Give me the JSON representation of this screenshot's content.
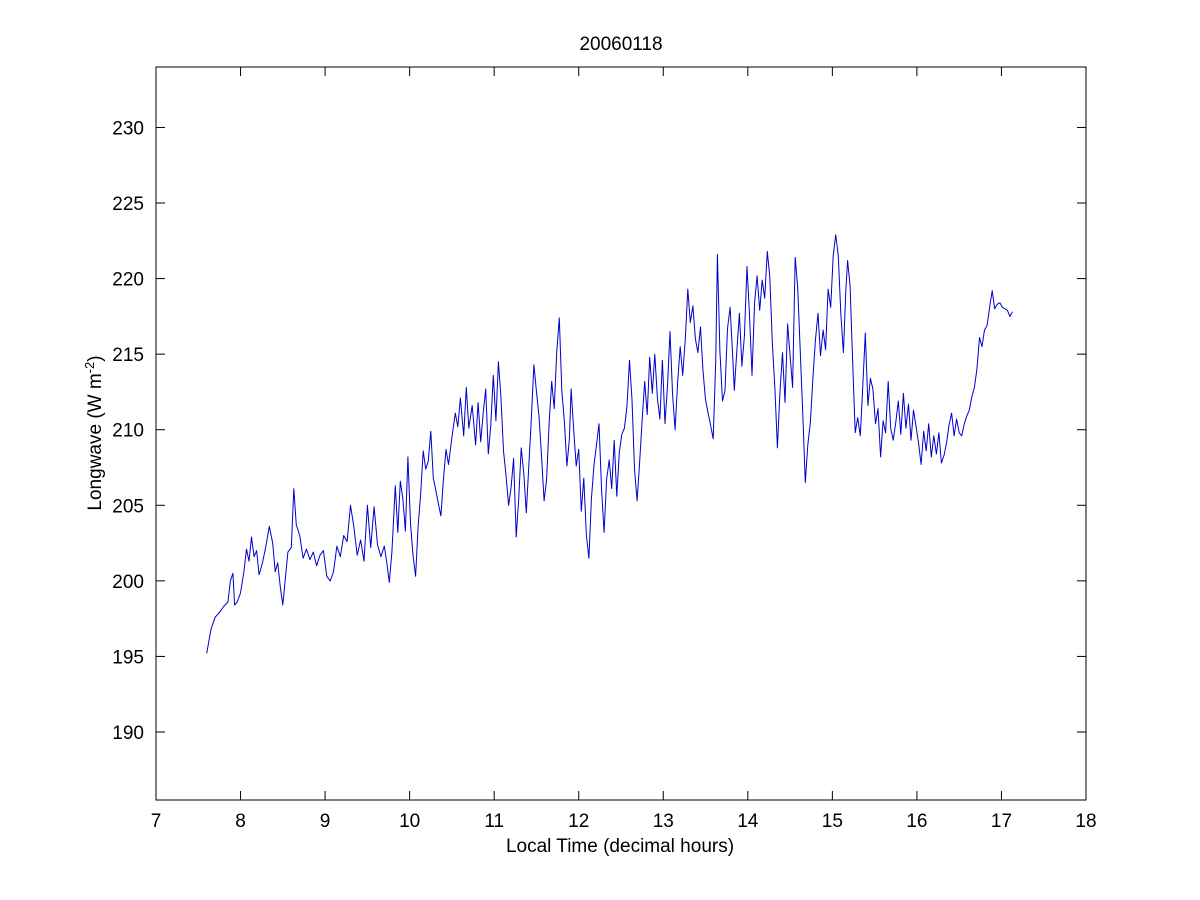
{
  "chart_data": {
    "type": "line",
    "title": "20060118",
    "xlabel": "Local Time (decimal hours)",
    "ylabel_main": "Longwave (W m",
    "ylabel_sup": "-2",
    "ylabel_close": ")",
    "xlim": [
      7,
      18
    ],
    "ylim": [
      185.5,
      234
    ],
    "xticks": [
      "7",
      "8",
      "9",
      "10",
      "11",
      "12",
      "13",
      "14",
      "15",
      "16",
      "17",
      "18"
    ],
    "yticks": [
      "190",
      "195",
      "200",
      "205",
      "210",
      "215",
      "220",
      "225",
      "230"
    ],
    "grid": false,
    "series": [
      {
        "color": "#0000cc",
        "points": [
          [
            7.6,
            195.2
          ],
          [
            7.65,
            196.8
          ],
          [
            7.7,
            197.6
          ],
          [
            7.75,
            197.9
          ],
          [
            7.8,
            198.3
          ],
          [
            7.85,
            198.6
          ],
          [
            7.88,
            200.0
          ],
          [
            7.91,
            200.5
          ],
          [
            7.93,
            198.4
          ],
          [
            7.96,
            198.6
          ],
          [
            8.0,
            199.2
          ],
          [
            8.04,
            200.6
          ],
          [
            8.07,
            202.1
          ],
          [
            8.1,
            201.3
          ],
          [
            8.13,
            202.9
          ],
          [
            8.16,
            201.6
          ],
          [
            8.19,
            202.0
          ],
          [
            8.22,
            200.4
          ],
          [
            8.26,
            201.2
          ],
          [
            8.3,
            202.3
          ],
          [
            8.34,
            203.6
          ],
          [
            8.38,
            202.5
          ],
          [
            8.41,
            200.6
          ],
          [
            8.44,
            201.2
          ],
          [
            8.47,
            199.6
          ],
          [
            8.5,
            198.4
          ],
          [
            8.53,
            200.2
          ],
          [
            8.56,
            201.9
          ],
          [
            8.6,
            202.2
          ],
          [
            8.63,
            206.1
          ],
          [
            8.66,
            203.7
          ],
          [
            8.7,
            203.0
          ],
          [
            8.74,
            201.5
          ],
          [
            8.78,
            202.1
          ],
          [
            8.82,
            201.4
          ],
          [
            8.86,
            201.9
          ],
          [
            8.9,
            201.0
          ],
          [
            8.94,
            201.7
          ],
          [
            8.98,
            202.0
          ],
          [
            9.02,
            200.3
          ],
          [
            9.06,
            200.0
          ],
          [
            9.1,
            200.6
          ],
          [
            9.14,
            202.3
          ],
          [
            9.18,
            201.6
          ],
          [
            9.22,
            203.0
          ],
          [
            9.26,
            202.6
          ],
          [
            9.3,
            205.0
          ],
          [
            9.34,
            203.6
          ],
          [
            9.38,
            201.7
          ],
          [
            9.42,
            202.7
          ],
          [
            9.46,
            201.3
          ],
          [
            9.5,
            205.0
          ],
          [
            9.54,
            202.2
          ],
          [
            9.58,
            204.9
          ],
          [
            9.62,
            202.4
          ],
          [
            9.66,
            201.6
          ],
          [
            9.7,
            202.3
          ],
          [
            9.73,
            201.2
          ],
          [
            9.76,
            199.9
          ],
          [
            9.79,
            201.9
          ],
          [
            9.83,
            206.3
          ],
          [
            9.86,
            203.2
          ],
          [
            9.89,
            206.6
          ],
          [
            9.92,
            205.4
          ],
          [
            9.95,
            203.3
          ],
          [
            9.98,
            208.2
          ],
          [
            10.01,
            203.8
          ],
          [
            10.04,
            201.7
          ],
          [
            10.07,
            200.3
          ],
          [
            10.1,
            203.6
          ],
          [
            10.13,
            205.7
          ],
          [
            10.16,
            208.6
          ],
          [
            10.19,
            207.4
          ],
          [
            10.22,
            207.9
          ],
          [
            10.25,
            209.9
          ],
          [
            10.28,
            206.8
          ],
          [
            10.31,
            206.0
          ],
          [
            10.34,
            205.1
          ],
          [
            10.37,
            204.3
          ],
          [
            10.4,
            206.8
          ],
          [
            10.43,
            208.7
          ],
          [
            10.46,
            207.7
          ],
          [
            10.5,
            209.5
          ],
          [
            10.54,
            211.1
          ],
          [
            10.57,
            210.2
          ],
          [
            10.6,
            212.1
          ],
          [
            10.64,
            209.6
          ],
          [
            10.67,
            212.8
          ],
          [
            10.7,
            210.1
          ],
          [
            10.74,
            211.6
          ],
          [
            10.78,
            209.0
          ],
          [
            10.81,
            211.8
          ],
          [
            10.84,
            209.2
          ],
          [
            10.87,
            211.1
          ],
          [
            10.9,
            212.7
          ],
          [
            10.93,
            208.4
          ],
          [
            10.96,
            210.3
          ],
          [
            10.99,
            213.6
          ],
          [
            11.02,
            210.6
          ],
          [
            11.05,
            214.5
          ],
          [
            11.08,
            212.2
          ],
          [
            11.11,
            208.6
          ],
          [
            11.14,
            207.0
          ],
          [
            11.17,
            205.0
          ],
          [
            11.2,
            206.2
          ],
          [
            11.23,
            208.1
          ],
          [
            11.26,
            202.9
          ],
          [
            11.29,
            205.4
          ],
          [
            11.32,
            208.8
          ],
          [
            11.35,
            207.1
          ],
          [
            11.38,
            204.5
          ],
          [
            11.41,
            207.6
          ],
          [
            11.44,
            210.8
          ],
          [
            11.47,
            214.3
          ],
          [
            11.5,
            212.5
          ],
          [
            11.53,
            210.9
          ],
          [
            11.56,
            208.3
          ],
          [
            11.59,
            205.3
          ],
          [
            11.62,
            206.7
          ],
          [
            11.65,
            210.4
          ],
          [
            11.68,
            213.2
          ],
          [
            11.71,
            211.4
          ],
          [
            11.74,
            215.1
          ],
          [
            11.77,
            217.4
          ],
          [
            11.8,
            212.6
          ],
          [
            11.83,
            210.5
          ],
          [
            11.86,
            207.6
          ],
          [
            11.89,
            209.4
          ],
          [
            11.91,
            212.7
          ],
          [
            11.94,
            210.0
          ],
          [
            11.97,
            207.6
          ],
          [
            12.0,
            208.7
          ],
          [
            12.03,
            204.6
          ],
          [
            12.06,
            206.8
          ],
          [
            12.09,
            203.1
          ],
          [
            12.12,
            201.5
          ],
          [
            12.15,
            205.4
          ],
          [
            12.18,
            207.6
          ],
          [
            12.21,
            209.0
          ],
          [
            12.24,
            210.4
          ],
          [
            12.27,
            206.0
          ],
          [
            12.3,
            203.2
          ],
          [
            12.33,
            206.7
          ],
          [
            12.36,
            208.0
          ],
          [
            12.39,
            206.1
          ],
          [
            12.42,
            209.3
          ],
          [
            12.45,
            205.6
          ],
          [
            12.48,
            208.5
          ],
          [
            12.51,
            209.7
          ],
          [
            12.54,
            210.1
          ],
          [
            12.57,
            211.5
          ],
          [
            12.6,
            214.6
          ],
          [
            12.63,
            212.0
          ],
          [
            12.66,
            207.4
          ],
          [
            12.69,
            205.3
          ],
          [
            12.72,
            207.8
          ],
          [
            12.75,
            210.6
          ],
          [
            12.78,
            213.2
          ],
          [
            12.81,
            211.0
          ],
          [
            12.84,
            214.8
          ],
          [
            12.87,
            212.4
          ],
          [
            12.9,
            215.0
          ],
          [
            12.93,
            212.1
          ],
          [
            12.96,
            210.7
          ],
          [
            12.99,
            214.6
          ],
          [
            13.02,
            210.4
          ],
          [
            13.05,
            212.9
          ],
          [
            13.08,
            216.5
          ],
          [
            13.11,
            212.3
          ],
          [
            13.14,
            210.0
          ],
          [
            13.17,
            213.1
          ],
          [
            13.2,
            215.5
          ],
          [
            13.23,
            213.6
          ],
          [
            13.26,
            216.0
          ],
          [
            13.29,
            219.3
          ],
          [
            13.32,
            217.1
          ],
          [
            13.35,
            218.2
          ],
          [
            13.38,
            216.0
          ],
          [
            13.41,
            215.1
          ],
          [
            13.44,
            216.8
          ],
          [
            13.47,
            213.9
          ],
          [
            13.5,
            212.0
          ],
          [
            13.53,
            211.1
          ],
          [
            13.56,
            210.3
          ],
          [
            13.59,
            209.4
          ],
          [
            13.62,
            214.5
          ],
          [
            13.64,
            221.6
          ],
          [
            13.67,
            215.2
          ],
          [
            13.7,
            211.9
          ],
          [
            13.73,
            212.6
          ],
          [
            13.76,
            216.7
          ],
          [
            13.79,
            218.1
          ],
          [
            13.82,
            215.0
          ],
          [
            13.84,
            212.6
          ],
          [
            13.87,
            215.2
          ],
          [
            13.9,
            217.7
          ],
          [
            13.93,
            214.2
          ],
          [
            13.96,
            216.2
          ],
          [
            13.99,
            220.8
          ],
          [
            14.02,
            217.6
          ],
          [
            14.05,
            213.6
          ],
          [
            14.08,
            218.4
          ],
          [
            14.11,
            220.2
          ],
          [
            14.14,
            217.9
          ],
          [
            14.17,
            219.9
          ],
          [
            14.2,
            218.7
          ],
          [
            14.23,
            221.8
          ],
          [
            14.26,
            220.1
          ],
          [
            14.29,
            215.8
          ],
          [
            14.32,
            212.7
          ],
          [
            14.35,
            208.8
          ],
          [
            14.38,
            212.4
          ],
          [
            14.41,
            215.1
          ],
          [
            14.44,
            211.8
          ],
          [
            14.47,
            217.0
          ],
          [
            14.5,
            214.9
          ],
          [
            14.53,
            212.8
          ],
          [
            14.56,
            221.4
          ],
          [
            14.59,
            219.4
          ],
          [
            14.62,
            215.3
          ],
          [
            14.65,
            211.0
          ],
          [
            14.68,
            206.5
          ],
          [
            14.71,
            209.0
          ],
          [
            14.74,
            210.5
          ],
          [
            14.77,
            213.4
          ],
          [
            14.8,
            216.0
          ],
          [
            14.83,
            217.7
          ],
          [
            14.86,
            214.9
          ],
          [
            14.89,
            216.6
          ],
          [
            14.92,
            215.3
          ],
          [
            14.95,
            219.3
          ],
          [
            14.98,
            218.1
          ],
          [
            15.01,
            221.5
          ],
          [
            15.04,
            222.9
          ],
          [
            15.07,
            221.5
          ],
          [
            15.1,
            217.7
          ],
          [
            15.13,
            215.1
          ],
          [
            15.16,
            219.3
          ],
          [
            15.18,
            221.2
          ],
          [
            15.21,
            219.5
          ],
          [
            15.24,
            214.4
          ],
          [
            15.27,
            209.8
          ],
          [
            15.3,
            210.8
          ],
          [
            15.33,
            209.6
          ],
          [
            15.36,
            212.9
          ],
          [
            15.39,
            216.4
          ],
          [
            15.42,
            211.6
          ],
          [
            15.45,
            213.4
          ],
          [
            15.48,
            212.7
          ],
          [
            15.51,
            210.4
          ],
          [
            15.54,
            211.4
          ],
          [
            15.57,
            208.2
          ],
          [
            15.6,
            210.6
          ],
          [
            15.63,
            209.8
          ],
          [
            15.66,
            213.2
          ],
          [
            15.69,
            210.1
          ],
          [
            15.72,
            209.3
          ],
          [
            15.75,
            210.5
          ],
          [
            15.78,
            211.9
          ],
          [
            15.81,
            209.7
          ],
          [
            15.84,
            212.4
          ],
          [
            15.87,
            210.1
          ],
          [
            15.9,
            211.7
          ],
          [
            15.93,
            209.3
          ],
          [
            15.96,
            211.3
          ],
          [
            15.99,
            210.2
          ],
          [
            16.02,
            209.1
          ],
          [
            16.05,
            207.7
          ],
          [
            16.08,
            209.9
          ],
          [
            16.11,
            208.6
          ],
          [
            16.14,
            210.4
          ],
          [
            16.17,
            208.2
          ],
          [
            16.2,
            209.6
          ],
          [
            16.23,
            208.4
          ],
          [
            16.26,
            209.8
          ],
          [
            16.29,
            207.8
          ],
          [
            16.32,
            208.3
          ],
          [
            16.35,
            209.1
          ],
          [
            16.38,
            210.3
          ],
          [
            16.41,
            211.1
          ],
          [
            16.44,
            209.6
          ],
          [
            16.47,
            210.7
          ],
          [
            16.5,
            209.8
          ],
          [
            16.53,
            209.6
          ],
          [
            16.56,
            210.4
          ],
          [
            16.59,
            210.9
          ],
          [
            16.62,
            211.3
          ],
          [
            16.65,
            212.2
          ],
          [
            16.68,
            212.8
          ],
          [
            16.71,
            214.0
          ],
          [
            16.74,
            216.1
          ],
          [
            16.77,
            215.5
          ],
          [
            16.8,
            216.6
          ],
          [
            16.83,
            216.9
          ],
          [
            16.86,
            218.1
          ],
          [
            16.89,
            219.2
          ],
          [
            16.92,
            218.0
          ],
          [
            16.95,
            218.3
          ],
          [
            16.98,
            218.4
          ],
          [
            17.01,
            218.1
          ],
          [
            17.04,
            218.0
          ],
          [
            17.07,
            217.9
          ],
          [
            17.1,
            217.5
          ],
          [
            17.13,
            217.8
          ]
        ]
      }
    ]
  }
}
